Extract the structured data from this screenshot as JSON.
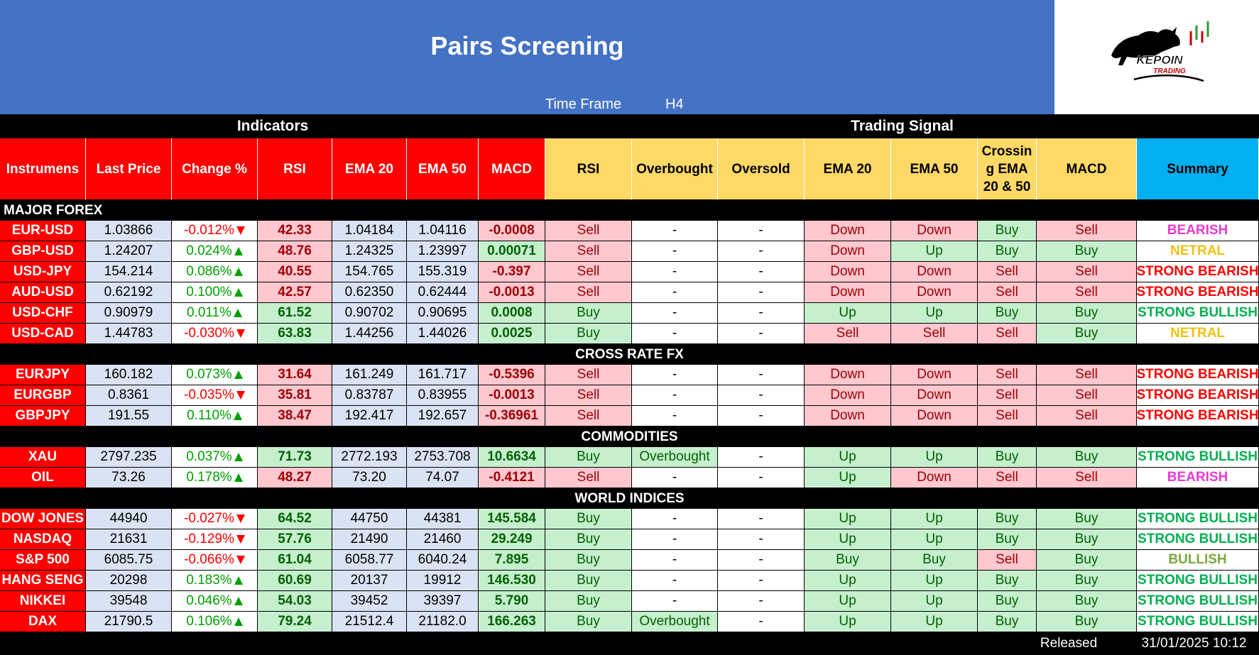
{
  "header": {
    "title": "Pairs Screening",
    "time_frame_label": "Time Frame",
    "time_frame": "H4"
  },
  "logo": {
    "name": "KEPOIN",
    "tagline": "TRADING"
  },
  "groups": {
    "indicators": "Indicators",
    "signals": "Trading Signal"
  },
  "columns": [
    "Instrumens",
    "Last Price",
    "Change %",
    "RSI",
    "EMA 20",
    "EMA 50",
    "MACD",
    "RSI",
    "Overbought",
    "Oversold",
    "EMA 20",
    "EMA 50",
    "Crossing EMA 20 & 50",
    "MACD",
    "Summary"
  ],
  "sections": [
    {
      "title": "MAJOR FOREX",
      "rows": [
        [
          "EUR-USD",
          "1.03866",
          "-0.012%",
          "42.33",
          "1.04184",
          "1.04116",
          "-0.0008",
          "Sell",
          "-",
          "-",
          "Down",
          "Down",
          "Buy",
          "Sell",
          "BEARISH"
        ],
        [
          "GBP-USD",
          "1.24207",
          "0.024%",
          "48.76",
          "1.24325",
          "1.23997",
          "0.00071",
          "Sell",
          "-",
          "-",
          "Down",
          "Up",
          "Buy",
          "Buy",
          "NETRAL"
        ],
        [
          "USD-JPY",
          "154.214",
          "0.086%",
          "40.55",
          "154.765",
          "155.319",
          "-0.397",
          "Sell",
          "-",
          "-",
          "Down",
          "Down",
          "Sell",
          "Sell",
          "STRONG BEARISH"
        ],
        [
          "AUD-USD",
          "0.62192",
          "0.100%",
          "42.57",
          "0.62350",
          "0.62444",
          "-0.0013",
          "Sell",
          "-",
          "-",
          "Down",
          "Down",
          "Sell",
          "Sell",
          "STRONG BEARISH"
        ],
        [
          "USD-CHF",
          "0.90979",
          "0.011%",
          "61.52",
          "0.90702",
          "0.90695",
          "0.0008",
          "Buy",
          "-",
          "-",
          "Up",
          "Up",
          "Buy",
          "Buy",
          "STRONG BULLISH"
        ],
        [
          "USD-CAD",
          "1.44783",
          "-0.030%",
          "63.83",
          "1.44256",
          "1.44026",
          "0.0025",
          "Buy",
          "-",
          "-",
          "Sell",
          "Sell",
          "Sell",
          "Buy",
          "NETRAL"
        ]
      ]
    },
    {
      "title": "CROSS RATE FX",
      "rows": [
        [
          "EURJPY",
          "160.182",
          "0.073%",
          "31.64",
          "161.249",
          "161.717",
          "-0.5396",
          "Sell",
          "-",
          "-",
          "Down",
          "Down",
          "Sell",
          "Sell",
          "STRONG BEARISH"
        ],
        [
          "EURGBP",
          "0.8361",
          "-0.035%",
          "35.81",
          "0.83787",
          "0.83955",
          "-0.0013",
          "Sell",
          "-",
          "-",
          "Down",
          "Down",
          "Sell",
          "Sell",
          "STRONG BEARISH"
        ],
        [
          "GBPJPY",
          "191.55",
          "0.110%",
          "38.47",
          "192.417",
          "192.657",
          "-0.36961",
          "Sell",
          "-",
          "-",
          "Down",
          "Down",
          "Sell",
          "Sell",
          "STRONG BEARISH"
        ]
      ]
    },
    {
      "title": "COMMODITIES",
      "rows": [
        [
          "XAU",
          "2797.235",
          "0.037%",
          "71.73",
          "2772.193",
          "2753.708",
          "10.6634",
          "Buy",
          "Overbought",
          "-",
          "Up",
          "Up",
          "Buy",
          "Buy",
          "STRONG BULLISH"
        ],
        [
          "OIL",
          "73.26",
          "0.178%",
          "48.27",
          "73.20",
          "74.07",
          "-0.4121",
          "Sell",
          "-",
          "-",
          "Up",
          "Down",
          "Sell",
          "Sell",
          "BEARISH"
        ]
      ]
    },
    {
      "title": "WORLD INDICES",
      "rows": [
        [
          "DOW JONES",
          "44940",
          "-0.027%",
          "64.52",
          "44750",
          "44381",
          "145.584",
          "Buy",
          "-",
          "-",
          "Up",
          "Up",
          "Buy",
          "Buy",
          "STRONG BULLISH"
        ],
        [
          "NASDAQ",
          "21631",
          "-0.129%",
          "57.76",
          "21490",
          "21460",
          "29.249",
          "Buy",
          "-",
          "-",
          "Up",
          "Up",
          "Buy",
          "Buy",
          "STRONG BULLISH"
        ],
        [
          "S&P 500",
          "6085.75",
          "-0.066%",
          "61.04",
          "6058.77",
          "6040.24",
          "7.895",
          "Buy",
          "-",
          "-",
          "Buy",
          "Buy",
          "Sell",
          "Buy",
          "BULLISH"
        ],
        [
          "HANG SENG",
          "20298",
          "0.183%",
          "60.69",
          "20137",
          "19912",
          "146.530",
          "Buy",
          "-",
          "-",
          "Up",
          "Up",
          "Buy",
          "Buy",
          "STRONG BULLISH"
        ],
        [
          "NIKKEI",
          "39548",
          "0.046%",
          "54.03",
          "39452",
          "39397",
          "5.790",
          "Buy",
          "-",
          "-",
          "Up",
          "Up",
          "Buy",
          "Buy",
          "STRONG BULLISH"
        ],
        [
          "DAX",
          "21790.5",
          "0.106%",
          "79.24",
          "21512.4",
          "21182.0",
          "166.263",
          "Buy",
          "Overbought",
          "-",
          "Up",
          "Up",
          "Buy",
          "Buy",
          "STRONG BULLISH"
        ]
      ]
    }
  ],
  "footer": {
    "label": "Released",
    "date": "31/01/2025 10:12"
  },
  "cell_styles": {
    "Sell": {
      "bg": "#ffc7ce",
      "fg": "#9c0006"
    },
    "Down": {
      "bg": "#ffc7ce",
      "fg": "#9c0006"
    },
    "Buy": {
      "bg": "#c6efce",
      "fg": "#006100"
    },
    "Up": {
      "bg": "#c6efce",
      "fg": "#006100"
    },
    "Overbought": {
      "bg": "#c6efce",
      "fg": "#006100"
    },
    "-": {
      "bg": "#ffffff",
      "fg": "#000000"
    },
    "BEARISH": {
      "bg": "#ffffff",
      "fg": "#e83ad1"
    },
    "NETRAL": {
      "bg": "#ffffff",
      "fg": "#f2c012"
    },
    "STRONG BEARISH": {
      "bg": "#ffffff",
      "fg": "#ff0000"
    },
    "STRONG BULLISH": {
      "bg": "#ffffff",
      "fg": "#00b050"
    },
    "BULLISH": {
      "bg": "#ffffff",
      "fg": "#7aa83b"
    }
  }
}
